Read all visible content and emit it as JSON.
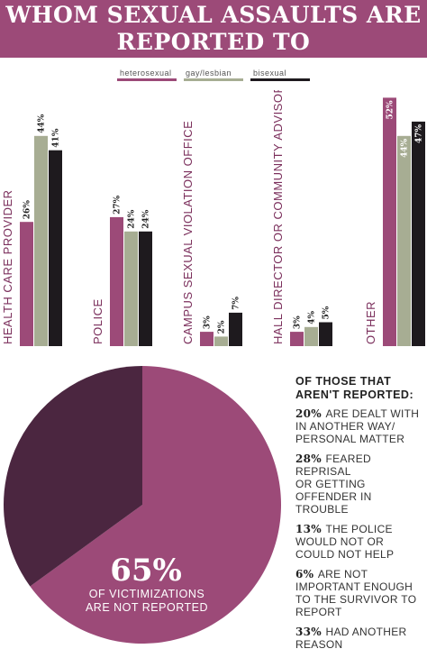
{
  "title": {
    "line1": "WHOM SEXUAL ASSAULTS ARE",
    "line2": "REPORTED TO"
  },
  "colors": {
    "heterosexual": "#9c4a78",
    "gay_lesbian": "#a7ad93",
    "bisexual": "#1e1a1e",
    "pie_main": "#9c4a78",
    "pie_other": "#4b2640"
  },
  "chart_data": [
    {
      "type": "bar",
      "title": "WHOM SEXUAL ASSAULTS ARE REPORTED TO",
      "categories": [
        "HEALTH CARE PROVIDER",
        "POLICE",
        "CAMPUS SEXUAL VIOLATION OFFICE",
        "HALL DIRECTOR OR COMMUNITY ADVISOR",
        "OTHER"
      ],
      "series": [
        {
          "name": "heterosexual",
          "values": [
            26,
            27,
            3,
            3,
            52
          ],
          "labels": [
            "26%",
            "27%",
            "3%",
            "3%",
            "52%"
          ]
        },
        {
          "name": "gay/lesbian",
          "values": [
            44,
            24,
            2,
            4,
            44
          ],
          "labels": [
            "44%",
            "24%",
            "2%",
            "4%",
            "44%"
          ]
        },
        {
          "name": "bisexual",
          "values": [
            41,
            24,
            7,
            5,
            47
          ],
          "labels": [
            "41%",
            "24%",
            "7%",
            "5%",
            "47%"
          ]
        }
      ],
      "legend": "top",
      "grid": false,
      "ylim": [
        0,
        55
      ]
    },
    {
      "type": "pie",
      "slices": [
        {
          "value": 65
        },
        {
          "value": 35
        }
      ],
      "center_value": "65%",
      "center_text_line1": "OF VICTIMIZATIONS",
      "center_text_line2": "ARE NOT REPORTED"
    }
  ],
  "notes": {
    "heading_line1": "OF THOSE THAT",
    "heading_line2": "AREN'T REPORTED:",
    "items": [
      {
        "pct": "20%",
        "lines": [
          "ARE DEALT WITH",
          "IN ANOTHER WAY/",
          "PERSONAL MATTER"
        ]
      },
      {
        "pct": "28%",
        "lines": [
          "FEARED REPRISAL",
          "OR GETTING",
          "OFFENDER IN",
          "TROUBLE"
        ]
      },
      {
        "pct": "13%",
        "lines": [
          "THE POLICE",
          "WOULD NOT OR",
          "COULD NOT HELP"
        ]
      },
      {
        "pct": "6%",
        "lines": [
          "ARE NOT",
          "IMPORTANT ENOUGH",
          "TO THE SURVIVOR TO",
          "REPORT"
        ]
      },
      {
        "pct": "33%",
        "lines": [
          "HAD ANOTHER",
          "REASON"
        ]
      }
    ]
  }
}
